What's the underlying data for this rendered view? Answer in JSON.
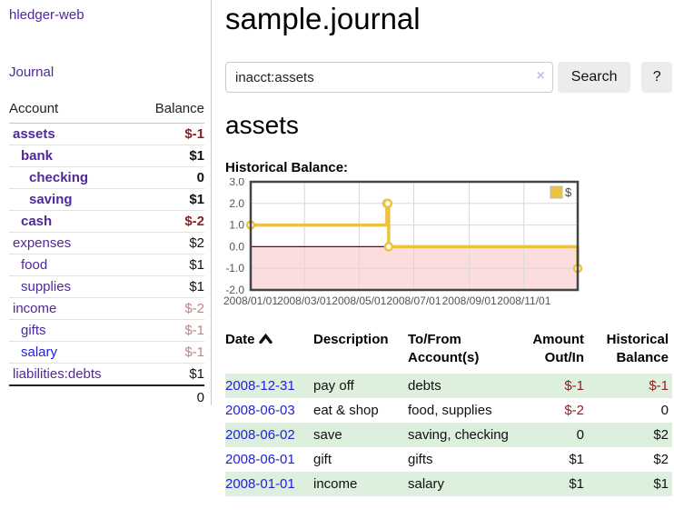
{
  "app": {
    "brand": "hledger-web"
  },
  "nav": {
    "journal": "Journal"
  },
  "sidebar": {
    "col_account": "Account",
    "col_balance": "Balance",
    "accounts": [
      {
        "name": "assets",
        "balance": "$-1"
      },
      {
        "name": "bank",
        "balance": "$1"
      },
      {
        "name": "checking",
        "balance": "0"
      },
      {
        "name": "saving",
        "balance": "$1"
      },
      {
        "name": "cash",
        "balance": "$-2"
      },
      {
        "name": "expenses",
        "balance": "$2"
      },
      {
        "name": "food",
        "balance": "$1"
      },
      {
        "name": "supplies",
        "balance": "$1"
      },
      {
        "name": "income",
        "balance": "$-2"
      },
      {
        "name": "gifts",
        "balance": "$-1"
      },
      {
        "name": "salary",
        "balance": "$-1"
      },
      {
        "name": "liabilities:debts",
        "balance": "$1"
      }
    ],
    "total": "0"
  },
  "header": {
    "title": "sample.journal"
  },
  "search": {
    "value": "inacct:assets",
    "clear_glyph": "×",
    "button_label": "Search",
    "help_label": "?"
  },
  "account_page": {
    "heading": "assets",
    "chart_title": "Historical Balance:"
  },
  "chart_data": {
    "type": "line",
    "title": "Historical Balance:",
    "x_start": "2008-01-01",
    "x_end": "2008-12-31",
    "ylim": [
      -2,
      3
    ],
    "y_ticks": [
      "3.0",
      "2.0",
      "1.0",
      "0.0",
      "-1.0",
      "-2.0"
    ],
    "x_ticks": [
      {
        "date": "2008-01-01",
        "label": "2008/01/01"
      },
      {
        "date": "2008-03-01",
        "label": "2008/03/01"
      },
      {
        "date": "2008-05-01",
        "label": "2008/05/01"
      },
      {
        "date": "2008-07-01",
        "label": "2008/07/01"
      },
      {
        "date": "2008-09-01",
        "label": "2008/09/01"
      },
      {
        "date": "2008-11-01",
        "label": "2008/11/01"
      }
    ],
    "series": [
      {
        "name": "$",
        "color": "#edc240",
        "style": "step-after",
        "points": [
          {
            "date": "2008-01-01",
            "value": 1
          },
          {
            "date": "2008-06-01",
            "value": 2
          },
          {
            "date": "2008-06-02",
            "value": 2
          },
          {
            "date": "2008-06-03",
            "value": 0
          },
          {
            "date": "2008-12-31",
            "value": -1
          }
        ]
      }
    ],
    "zero_line_color": "#800000",
    "negative_region_color": "#fbdddd",
    "grid_color": "#d8d8d8",
    "border_color": "#454545",
    "legend": {
      "label": "$",
      "position": "top-right"
    }
  },
  "register": {
    "col_date": "Date",
    "sort_icon": "chevron-up",
    "col_description": "Description",
    "col_accounts": "To/From Account(s)",
    "col_amount": "Amount Out/In",
    "col_balance": "Historical Balance",
    "rows": [
      {
        "date": "2008-12-31",
        "description": "pay off",
        "accounts": "debts",
        "amount": "$-1",
        "balance": "$-1"
      },
      {
        "date": "2008-06-03",
        "description": "eat & shop",
        "accounts": "food, supplies",
        "amount": "$-2",
        "balance": "0"
      },
      {
        "date": "2008-06-02",
        "description": "save",
        "accounts": "saving, checking",
        "amount": "0",
        "balance": "$2"
      },
      {
        "date": "2008-06-01",
        "description": "gift",
        "accounts": "gifts",
        "amount": "$1",
        "balance": "$2"
      },
      {
        "date": "2008-01-01",
        "description": "income",
        "accounts": "salary",
        "amount": "$1",
        "balance": "$1"
      }
    ]
  }
}
